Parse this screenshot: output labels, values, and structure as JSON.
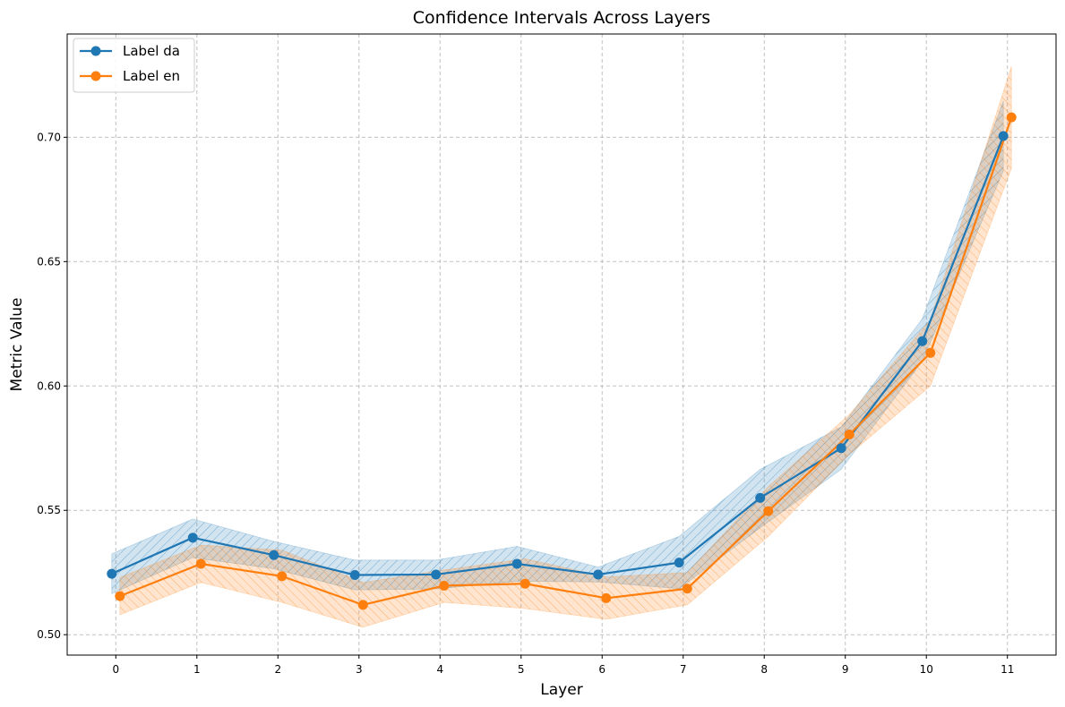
{
  "chart_data": {
    "type": "line",
    "title": "Confidence Intervals Across Layers",
    "xlabel": "Layer",
    "ylabel": "Metric Value",
    "x": [
      0,
      1,
      2,
      3,
      4,
      5,
      6,
      7,
      8,
      9,
      10,
      11
    ],
    "xlim": [
      -0.6,
      11.6
    ],
    "ylim": [
      0.4918,
      0.7415
    ],
    "yticks": [
      "0.50",
      "0.55",
      "0.60",
      "0.65",
      "0.70"
    ],
    "grid": true,
    "legend_position": "top-left",
    "series": [
      {
        "name": "Label da",
        "color": "#1f77b4",
        "values": [
          0.5245,
          0.539,
          0.532,
          0.524,
          0.5242,
          0.5285,
          0.5242,
          0.529,
          0.555,
          0.575,
          0.618,
          0.7005
        ],
        "lower": [
          0.5165,
          0.531,
          0.5265,
          0.518,
          0.5184,
          0.5215,
          0.5212,
          0.5185,
          0.543,
          0.5665,
          0.61,
          0.6865
        ],
        "upper": [
          0.5325,
          0.5465,
          0.5375,
          0.53,
          0.53,
          0.5355,
          0.5272,
          0.5395,
          0.5665,
          0.5835,
          0.627,
          0.7145
        ]
      },
      {
        "name": "Label en",
        "color": "#ff7f0e",
        "values": [
          0.5155,
          0.5285,
          0.5235,
          0.512,
          0.5197,
          0.5205,
          0.5147,
          0.5185,
          0.5497,
          0.5805,
          0.6133,
          0.708
        ],
        "lower": [
          0.508,
          0.521,
          0.513,
          0.503,
          0.513,
          0.5105,
          0.5062,
          0.512,
          0.5395,
          0.5725,
          0.6,
          0.6875
        ],
        "upper": [
          0.523,
          0.536,
          0.534,
          0.521,
          0.526,
          0.5305,
          0.5232,
          0.525,
          0.5595,
          0.5885,
          0.6265,
          0.7285
        ]
      }
    ]
  }
}
